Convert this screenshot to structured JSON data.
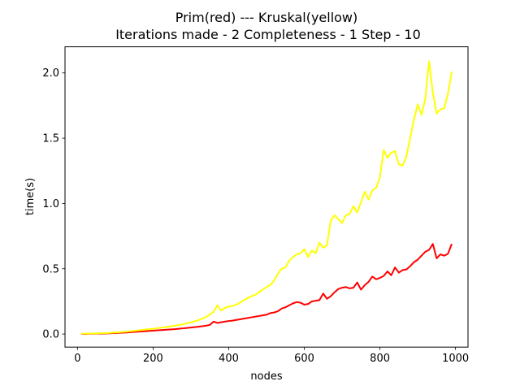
{
  "chart_data": {
    "type": "line",
    "title_line1": "Prim(red)  ---   Kruskal(yellow)",
    "title_line2": "Iterations made - 2    Completeness - 1    Step - 10",
    "xlabel": "nodes",
    "ylabel": "time(s)",
    "xlim": [
      -33,
      1033
    ],
    "ylim": [
      -0.1,
      2.2
    ],
    "xticks": [
      0,
      200,
      400,
      600,
      800,
      1000
    ],
    "xtick_labels": [
      "0",
      "200",
      "400",
      "600",
      "800",
      "1000"
    ],
    "yticks": [
      0.0,
      0.5,
      1.0,
      1.5,
      2.0
    ],
    "ytick_labels": [
      "0.0",
      "0.5",
      "1.0",
      "1.5",
      "2.0"
    ],
    "grid": false,
    "x": [
      10,
      20,
      30,
      40,
      50,
      60,
      70,
      80,
      90,
      100,
      110,
      120,
      130,
      140,
      150,
      160,
      170,
      180,
      190,
      200,
      210,
      220,
      230,
      240,
      250,
      260,
      270,
      280,
      290,
      300,
      310,
      320,
      330,
      340,
      350,
      360,
      370,
      380,
      390,
      400,
      410,
      420,
      430,
      440,
      450,
      460,
      470,
      480,
      490,
      500,
      510,
      520,
      530,
      540,
      550,
      560,
      570,
      580,
      590,
      600,
      610,
      620,
      630,
      640,
      650,
      660,
      670,
      680,
      690,
      700,
      710,
      720,
      730,
      740,
      750,
      760,
      770,
      780,
      790,
      800,
      810,
      820,
      830,
      840,
      850,
      860,
      870,
      880,
      890,
      900,
      910,
      920,
      930,
      940,
      950,
      960,
      970,
      980,
      990
    ],
    "series": [
      {
        "name": "Prim",
        "color": "#ff0000",
        "values": [
          0.001,
          0.001,
          0.002,
          0.002,
          0.003,
          0.003,
          0.004,
          0.005,
          0.006,
          0.007,
          0.009,
          0.01,
          0.012,
          0.014,
          0.016,
          0.018,
          0.02,
          0.022,
          0.024,
          0.026,
          0.028,
          0.03,
          0.032,
          0.034,
          0.036,
          0.038,
          0.041,
          0.044,
          0.047,
          0.05,
          0.053,
          0.056,
          0.06,
          0.064,
          0.07,
          0.095,
          0.085,
          0.09,
          0.095,
          0.1,
          0.103,
          0.108,
          0.113,
          0.118,
          0.123,
          0.128,
          0.133,
          0.138,
          0.143,
          0.148,
          0.16,
          0.165,
          0.175,
          0.195,
          0.205,
          0.22,
          0.235,
          0.245,
          0.24,
          0.225,
          0.23,
          0.25,
          0.255,
          0.26,
          0.31,
          0.27,
          0.29,
          0.32,
          0.345,
          0.355,
          0.36,
          0.35,
          0.355,
          0.395,
          0.34,
          0.375,
          0.4,
          0.44,
          0.42,
          0.43,
          0.445,
          0.48,
          0.45,
          0.51,
          0.47,
          0.49,
          0.495,
          0.52,
          0.55,
          0.57,
          0.6,
          0.63,
          0.645,
          0.69,
          0.58,
          0.61,
          0.6,
          0.615,
          0.69
        ]
      },
      {
        "name": "Kruskal",
        "color": "#ffff00",
        "values": [
          0.002,
          0.003,
          0.004,
          0.004,
          0.005,
          0.006,
          0.007,
          0.008,
          0.01,
          0.012,
          0.014,
          0.016,
          0.019,
          0.022,
          0.025,
          0.028,
          0.031,
          0.034,
          0.037,
          0.04,
          0.044,
          0.048,
          0.052,
          0.056,
          0.06,
          0.065,
          0.07,
          0.076,
          0.083,
          0.09,
          0.098,
          0.107,
          0.118,
          0.13,
          0.15,
          0.17,
          0.22,
          0.18,
          0.2,
          0.21,
          0.215,
          0.225,
          0.24,
          0.26,
          0.275,
          0.29,
          0.3,
          0.32,
          0.34,
          0.36,
          0.375,
          0.41,
          0.46,
          0.5,
          0.51,
          0.56,
          0.59,
          0.61,
          0.62,
          0.65,
          0.59,
          0.64,
          0.62,
          0.7,
          0.66,
          0.68,
          0.87,
          0.91,
          0.88,
          0.85,
          0.91,
          0.92,
          0.98,
          0.93,
          1.01,
          1.09,
          1.03,
          1.1,
          1.12,
          1.2,
          1.41,
          1.35,
          1.39,
          1.4,
          1.3,
          1.29,
          1.36,
          1.5,
          1.64,
          1.76,
          1.68,
          1.8,
          2.09,
          1.85,
          1.69,
          1.72,
          1.73,
          1.84,
          2.01
        ]
      }
    ]
  }
}
